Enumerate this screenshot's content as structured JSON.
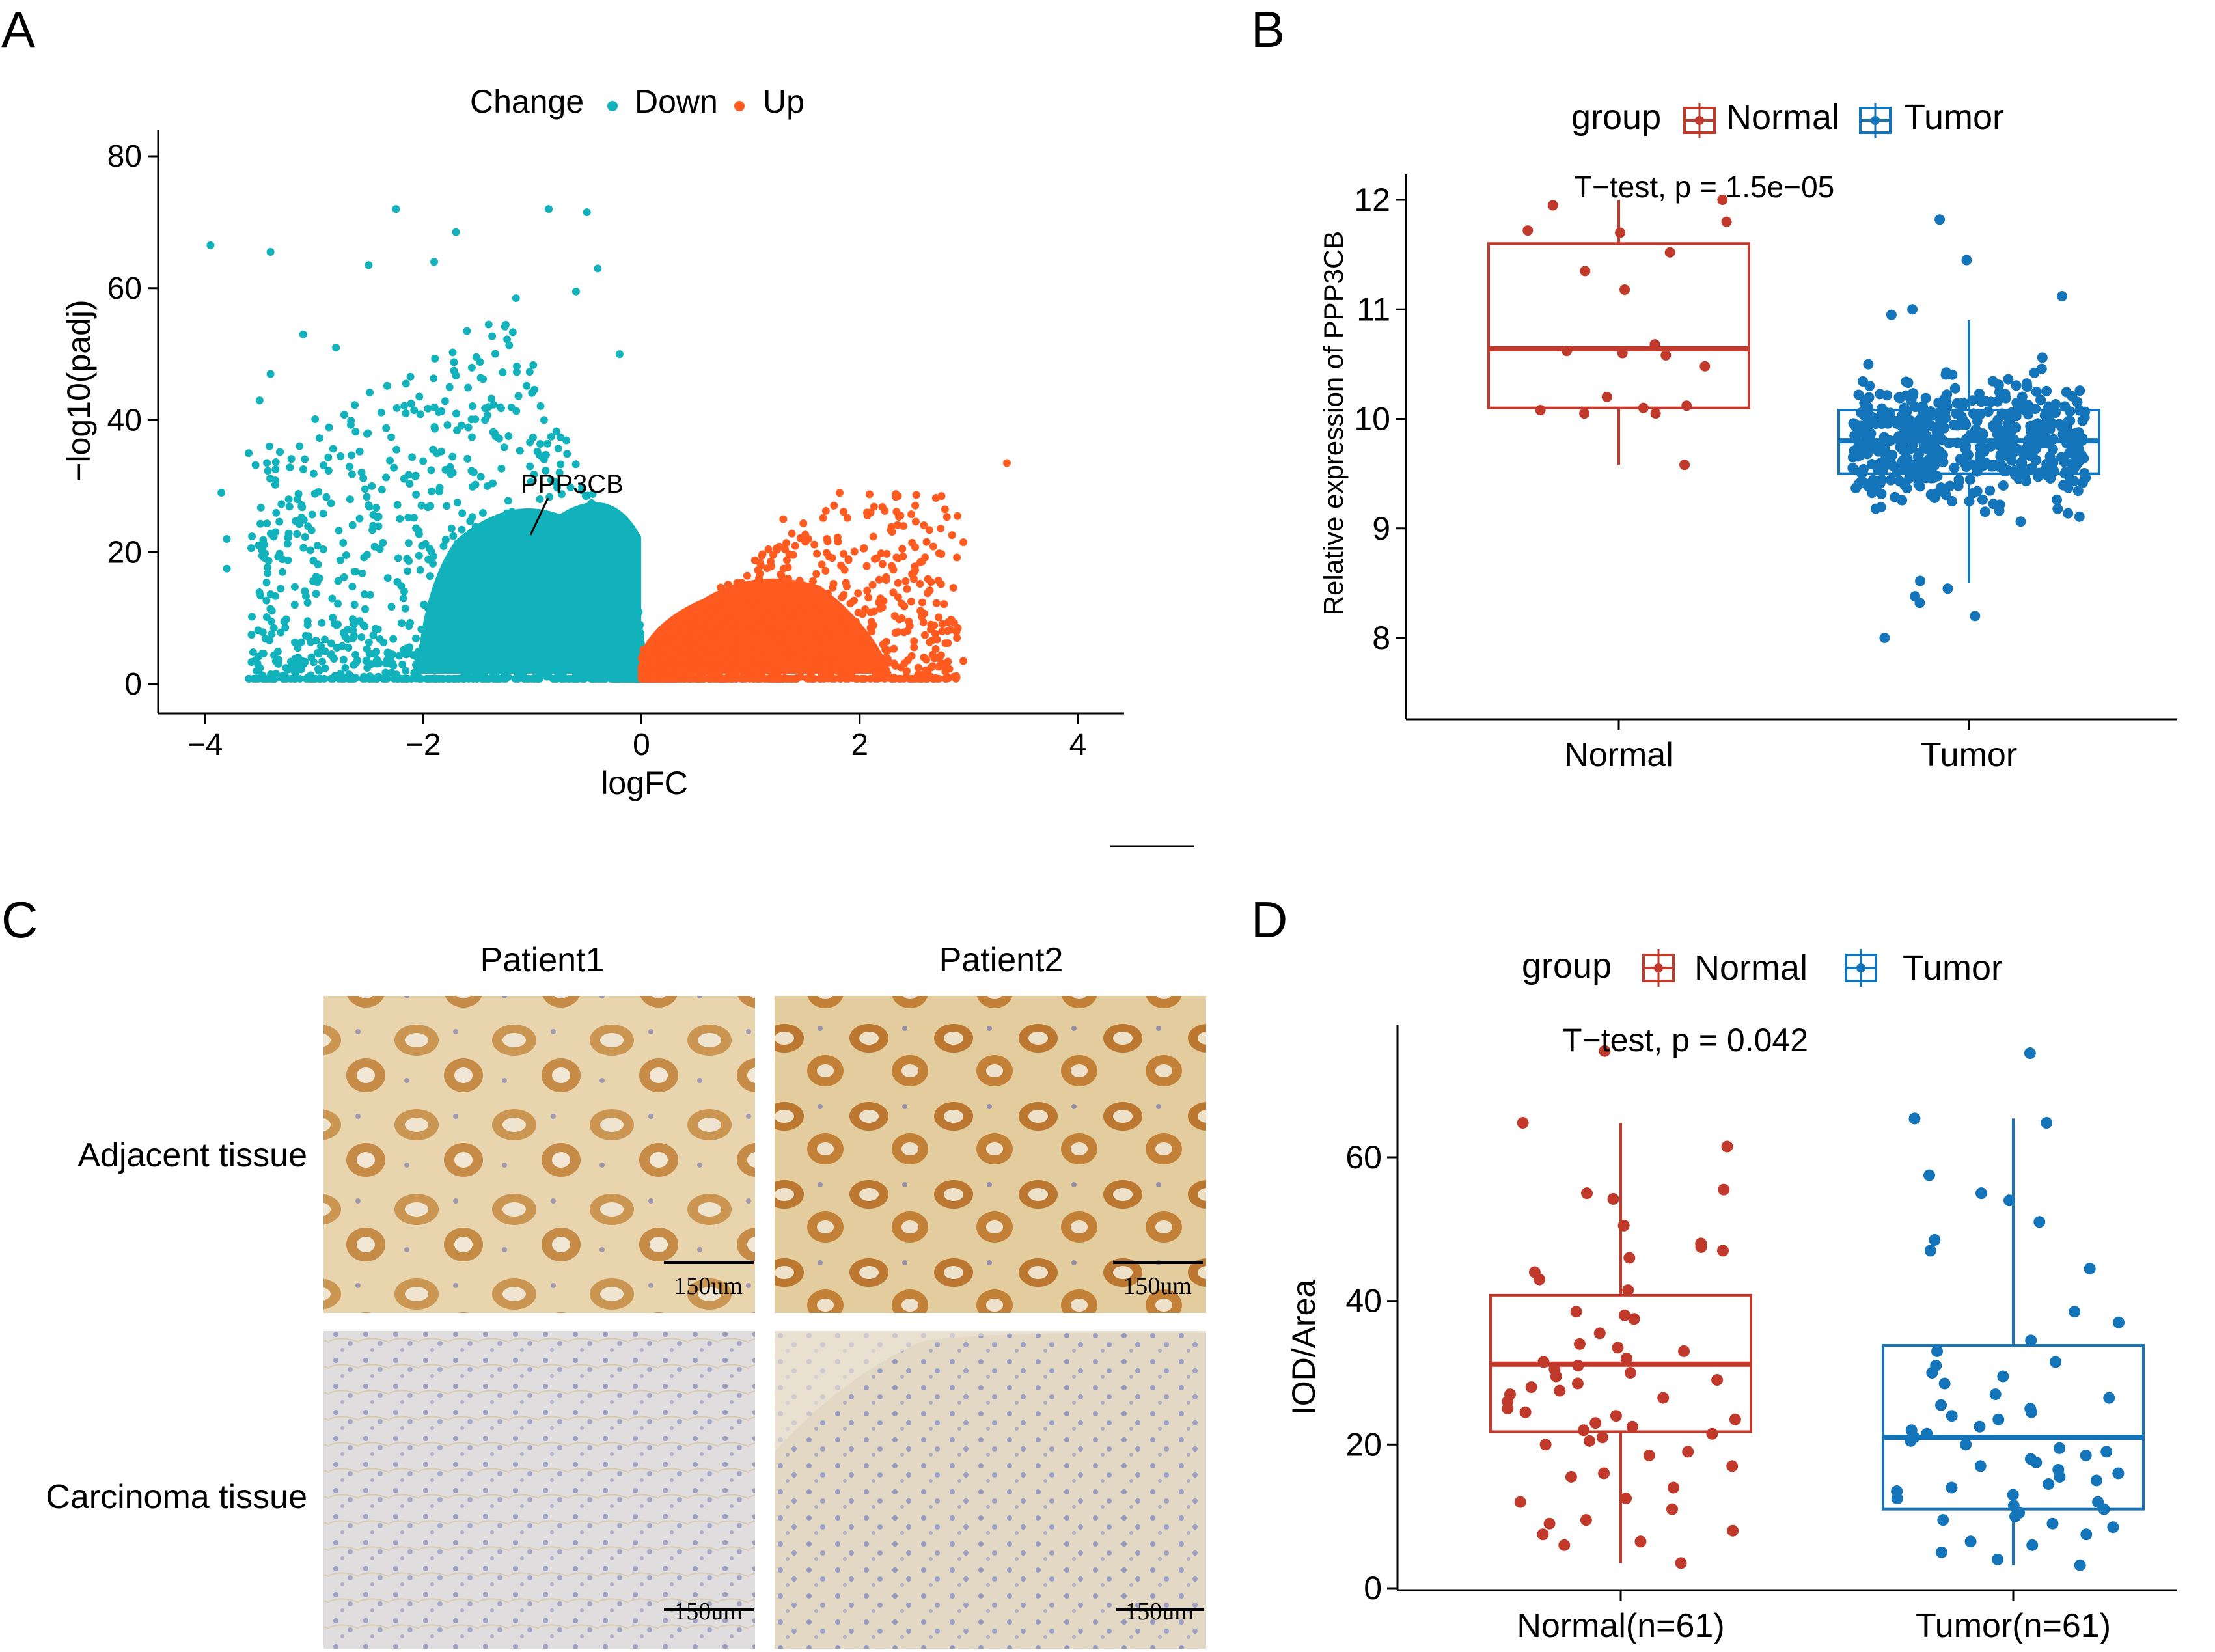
{
  "panel_labels": [
    "A",
    "B",
    "C",
    "D"
  ],
  "colors": {
    "down": "#12B2BC",
    "up": "#FF5A1F",
    "normal": "#C0392B",
    "tumor": "#1474B9",
    "stain_brown": "#B8752E",
    "stain_blue": "#9098C0"
  },
  "panelC": {
    "columns": [
      "Patient1",
      "Patient2"
    ],
    "rows": [
      "Adjacent tissue",
      "Carcinoma tissue"
    ],
    "scale_bar": "150um"
  },
  "chart_data": [
    {
      "id": "A",
      "type": "scatter",
      "title": "",
      "xlabel": "logFC",
      "ylabel": "−log10(padj)",
      "xlim": [
        -4.2,
        4.4
      ],
      "ylim": [
        -2,
        84
      ],
      "xticks": [
        -4,
        -2,
        0,
        2,
        4
      ],
      "xtick_labels": [
        "−4",
        "−2",
        "0",
        "2",
        "4"
      ],
      "yticks": [
        0,
        20,
        40,
        60,
        80
      ],
      "ytick_labels": [
        "0",
        "20",
        "40",
        "60",
        "80"
      ],
      "legend": {
        "title": "Change",
        "entries": [
          "Down",
          "Up"
        ],
        "position": "top"
      },
      "annotations": [
        {
          "text": "PPP3CB",
          "x": -1.0,
          "y": 29,
          "arrow_to": [
            -1.05,
            22
          ]
        }
      ],
      "grid": false,
      "series": [
        {
          "name": "Down",
          "color_key": "down",
          "highlight_points": [
            [
              -3.95,
              66.5
            ],
            [
              -3.4,
              65.5
            ],
            [
              -2.25,
              72
            ],
            [
              -1.7,
              68.5
            ],
            [
              -0.85,
              72
            ],
            [
              -0.5,
              71.5
            ],
            [
              -2.5,
              63.5
            ],
            [
              -1.9,
              64
            ],
            [
              -0.4,
              63
            ],
            [
              -1.15,
              58.5
            ],
            [
              -0.6,
              59.5
            ],
            [
              -3.1,
              53
            ],
            [
              -2.8,
              51
            ],
            [
              -1.6,
              53.5
            ],
            [
              -0.2,
              50
            ],
            [
              -1.4,
              54.5
            ],
            [
              -3.85,
              29
            ],
            [
              -3.6,
              35
            ],
            [
              -3.8,
              22
            ],
            [
              -3.8,
              17.5
            ],
            [
              -2.9,
              5
            ],
            [
              -3.15,
              5.5
            ],
            [
              -3.4,
              47
            ],
            [
              -3.5,
              43
            ]
          ]
        },
        {
          "name": "Up",
          "color_key": "up",
          "highlight_points": [
            [
              3.35,
              33.5
            ],
            [
              2.75,
              28.5
            ],
            [
              2.35,
              28.5
            ],
            [
              2.95,
              21.5
            ],
            [
              2.1,
              26
            ],
            [
              1.7,
              22
            ],
            [
              2.9,
              8.5
            ],
            [
              2.95,
              3.5
            ],
            [
              2.45,
              9.5
            ],
            [
              1.3,
              25
            ]
          ]
        }
      ]
    },
    {
      "id": "B",
      "type": "box",
      "title": "",
      "xlabel": "",
      "ylabel": "Relative expression of PPP3CB",
      "categories": [
        "Normal",
        "Tumor"
      ],
      "ylim": [
        7.3,
        12.2
      ],
      "yticks": [
        8,
        9,
        10,
        11,
        12
      ],
      "legend": {
        "title": "group",
        "entries": [
          "Normal",
          "Tumor"
        ],
        "position": "top"
      },
      "annotation": "T−test, p = 1.5e−05",
      "boxes": [
        {
          "group": "Normal",
          "min": 9.58,
          "q1": 10.1,
          "median": 10.64,
          "q3": 11.6,
          "max": 12.0
        },
        {
          "group": "Tumor",
          "min": 8.5,
          "q1": 9.5,
          "median": 9.8,
          "q3": 10.08,
          "max": 10.9
        }
      ],
      "points": {
        "Normal": [
          12.0,
          11.95,
          11.8,
          11.72,
          11.7,
          11.52,
          11.35,
          11.18,
          10.68,
          10.62,
          10.6,
          10.58,
          10.48,
          10.2,
          10.12,
          10.1,
          10.08,
          10.05,
          10.05,
          9.58
        ],
        "Tumor_extremes": [
          11.82,
          11.45,
          11.12,
          11.0,
          10.95,
          8.52,
          8.45,
          8.38,
          8.32,
          8.2,
          8.0
        ]
      }
    },
    {
      "id": "D",
      "type": "box",
      "title": "",
      "xlabel": "",
      "ylabel": "IOD/Area",
      "categories": [
        "Normal(n=61)",
        "Tumor(n=61)"
      ],
      "ylim": [
        -1,
        78
      ],
      "yticks": [
        0,
        20,
        40,
        60
      ],
      "legend": {
        "title": "group",
        "entries": [
          "Normal",
          "Tumor"
        ],
        "position": "top"
      },
      "annotation": "T−test, p = 0.042",
      "boxes": [
        {
          "group": "Normal",
          "min": 3.5,
          "q1": 21.8,
          "median": 31.2,
          "q3": 40.8,
          "max": 64.8
        },
        {
          "group": "Tumor",
          "min": 3.2,
          "q1": 11.0,
          "median": 21.0,
          "q3": 33.8,
          "max": 65.4
        }
      ],
      "points": {
        "Normal": [
          74.8,
          64.8,
          61.5,
          55.5,
          55.0,
          54.2,
          50.5,
          48.0,
          47.5,
          47.0,
          46.0,
          44.0,
          43.0,
          41.5,
          38.5,
          38.0,
          37.5,
          35.5,
          34.0,
          33.5,
          33.0,
          32.0,
          31.5,
          31.0,
          30.5,
          30.0,
          29.5,
          29.0,
          28.5,
          28.0,
          27.5,
          27.0,
          26.5,
          26.0,
          25.0,
          24.5,
          24.0,
          23.5,
          23.0,
          22.5,
          22.0,
          21.5,
          21.0,
          20.5,
          20.0,
          19.0,
          18.5,
          17.0,
          16.0,
          15.5,
          14.0,
          12.5,
          12.0,
          11.0,
          9.5,
          9.0,
          8.0,
          7.5,
          6.5,
          6.0,
          3.5
        ],
        "Tumor": [
          74.5,
          65.4,
          64.8,
          57.5,
          55.0,
          54.0,
          51.0,
          48.5,
          47.0,
          44.5,
          38.5,
          37.0,
          34.5,
          33.0,
          31.5,
          31.0,
          30.0,
          29.5,
          28.5,
          27.0,
          26.5,
          25.5,
          25.0,
          24.5,
          24.0,
          23.5,
          22.5,
          22.0,
          21.5,
          21.0,
          20.5,
          20.0,
          19.5,
          19.0,
          18.5,
          18.0,
          17.5,
          17.0,
          16.5,
          16.0,
          15.5,
          15.0,
          14.5,
          14.0,
          13.5,
          13.0,
          12.5,
          12.0,
          11.5,
          11.0,
          10.5,
          10.0,
          9.5,
          9.0,
          8.5,
          7.5,
          6.5,
          6.0,
          5.0,
          4.0,
          3.2
        ]
      }
    }
  ]
}
